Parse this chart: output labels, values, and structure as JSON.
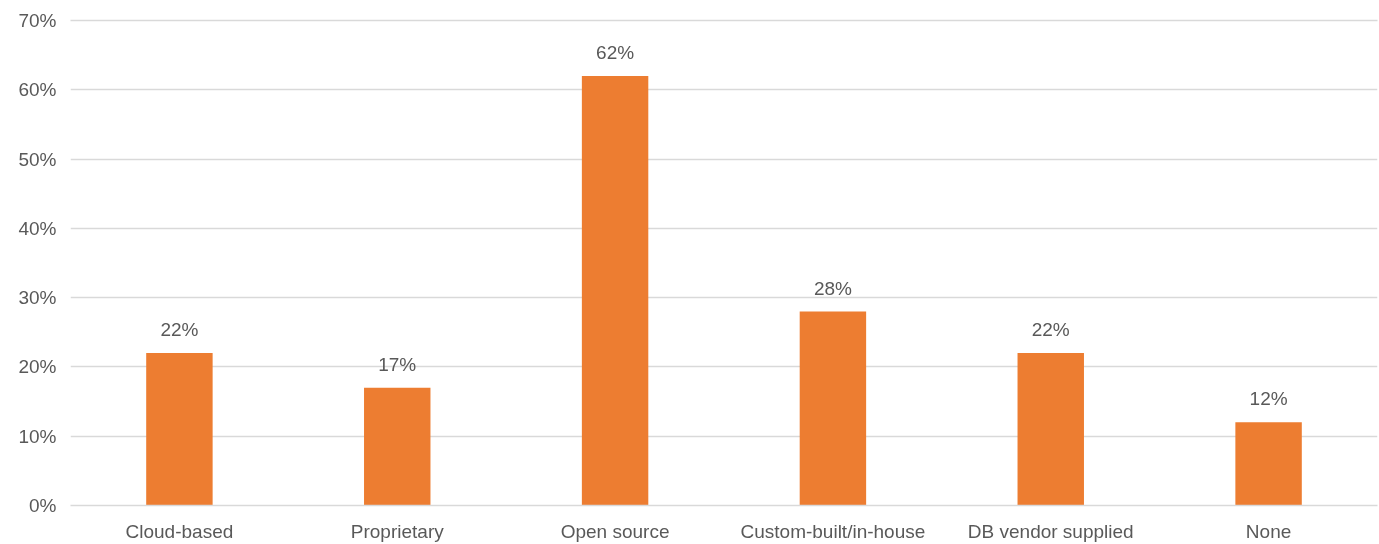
{
  "chart_data": {
    "type": "bar",
    "categories": [
      "Cloud-based",
      "Proprietary",
      "Open source",
      "Custom-built/in-house",
      "DB vendor supplied",
      "None"
    ],
    "values": [
      22,
      17,
      62,
      28,
      22,
      12
    ],
    "value_labels": [
      "22%",
      "17%",
      "62%",
      "28%",
      "22%",
      "12%"
    ],
    "color": "#ed7d31",
    "ylim": [
      0,
      70
    ],
    "yticks": [
      {
        "value": 0,
        "label": "0%"
      },
      {
        "value": 10,
        "label": "10%"
      },
      {
        "value": 20,
        "label": "20%"
      },
      {
        "value": 30,
        "label": "30%"
      },
      {
        "value": 40,
        "label": "40%"
      },
      {
        "value": 50,
        "label": "50%"
      },
      {
        "value": 60,
        "label": "60%"
      },
      {
        "value": 70,
        "label": "70%"
      }
    ],
    "grid": "y"
  }
}
